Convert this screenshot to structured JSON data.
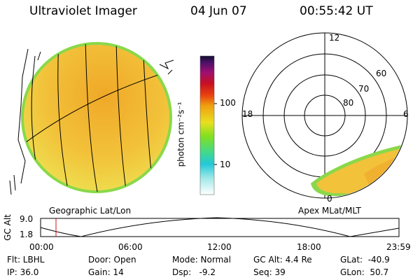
{
  "header": {
    "title": "Ultraviolet Imager",
    "date": "04 Jun 07",
    "time": "00:55:42 UT"
  },
  "colorbar": {
    "unit_label": "photon cm⁻²s⁻¹",
    "ticks": [
      "100",
      "10"
    ],
    "scale": "log"
  },
  "left_panel": {
    "caption": "Geographic Lat/Lon"
  },
  "right_panel": {
    "caption": "Apex MLat/MLT",
    "mlt_labels": {
      "top": "12",
      "left": "18",
      "right": "6",
      "bottom": "0"
    },
    "lat_labels": [
      "60",
      "70",
      "80"
    ]
  },
  "altitude_plot": {
    "ylabel": "GC Alt",
    "yticks": [
      "9.0",
      "1.8"
    ],
    "xticks": [
      "00:00",
      "06:00",
      "12:00",
      "18:00",
      "23:59"
    ],
    "current_time_marker": "00:55:42"
  },
  "footer": {
    "flt": "Flt: LBHL",
    "ip": "IP: 36.0",
    "door": "Door: Open",
    "gain": "Gain: 14",
    "mode": "Mode: Normal",
    "dsp": "Dsp:   -9.2",
    "gc_alt": "GC Alt: 4.4 Re",
    "seq": "Seq: 39",
    "glat": "GLat:  -40.9",
    "glon": "GLon:  50.7"
  },
  "colors": {
    "earth_fill": "#f2c23a",
    "earth_rim": "#8ad84a",
    "marker": "#d01010"
  }
}
